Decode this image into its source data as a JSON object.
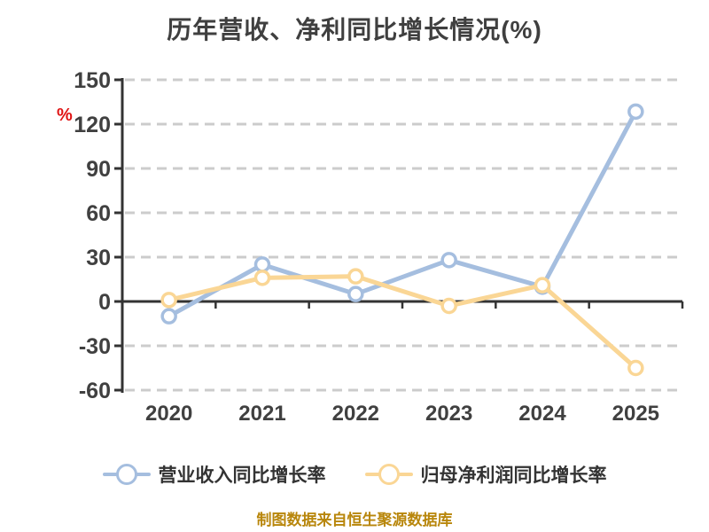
{
  "title": "历年营收、净利同比增长情况(%)",
  "footer": "制图数据来自恒生聚源数据库",
  "colors": {
    "title_text": "#3f3f3f",
    "axis_text": "#404040",
    "axis_line": "#333333",
    "grid_line": "#cccccc",
    "legend_text": "#333333",
    "footer_text": "#b8860b",
    "y_unit_text": "#e01414",
    "marker_fill": "#ffffff"
  },
  "chart_data": {
    "type": "line",
    "title": "历年营收、净利同比增长情况(%)",
    "categories": [
      "2020",
      "2021",
      "2022",
      "2023",
      "2024",
      "2025"
    ],
    "series": [
      {
        "name": "营业收入同比增长率",
        "color": "#a5bedf",
        "values": [
          -10,
          25,
          5,
          28,
          10,
          128.5
        ]
      },
      {
        "name": "归母净利润同比增长率",
        "color": "#fad695",
        "values": [
          1,
          16,
          17,
          -3,
          11,
          -45
        ]
      }
    ],
    "xlabel": "",
    "ylabel": "%",
    "ylim": [
      -60,
      150
    ],
    "y_ticks": [
      150,
      120,
      90,
      60,
      30,
      0,
      -30,
      -60
    ],
    "grid": "dashed horizontal",
    "legend_position": "bottom"
  }
}
